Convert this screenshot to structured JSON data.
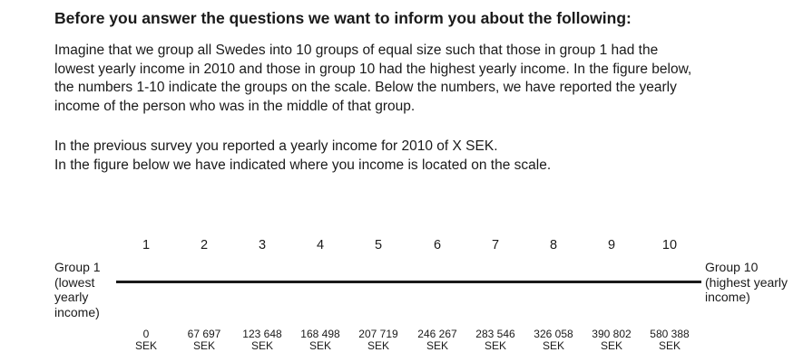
{
  "heading": "Before you answer the questions we want to inform you about the following:",
  "intro_lines": [
    "Imagine that we group all Swedes into 10 groups of equal size such that those in group 1 had the",
    "lowest yearly income in 2010 and those in group 10 had the highest yearly income. In the figure below,",
    "the numbers 1-10 indicate the groups on the scale. Below the numbers, we have reported the yearly",
    "income of the person who was in the middle of that group."
  ],
  "survey_lines": [
    "In the previous survey you reported a yearly income for 2010 of X SEK.",
    "In the figure below we have indicated where you income is located on the scale."
  ],
  "scale": {
    "left_label_lines": [
      "Group 1",
      "(lowest",
      "yearly",
      "income)"
    ],
    "right_label_lines": [
      "Group 10",
      "(highest yearly",
      "income)"
    ],
    "groups": [
      {
        "number": "1",
        "income": "0",
        "unit": "SEK"
      },
      {
        "number": "2",
        "income": "67 697",
        "unit": "SEK"
      },
      {
        "number": "3",
        "income": "123 648",
        "unit": "SEK"
      },
      {
        "number": "4",
        "income": "168 498",
        "unit": "SEK"
      },
      {
        "number": "5",
        "income": "207 719",
        "unit": "SEK"
      },
      {
        "number": "6",
        "income": "246 267",
        "unit": "SEK"
      },
      {
        "number": "7",
        "income": "283 546",
        "unit": "SEK"
      },
      {
        "number": "8",
        "income": "326 058",
        "unit": "SEK"
      },
      {
        "number": "9",
        "income": "390 802",
        "unit": "SEK"
      },
      {
        "number": "10",
        "income": "580 388",
        "unit": "SEK"
      }
    ]
  }
}
